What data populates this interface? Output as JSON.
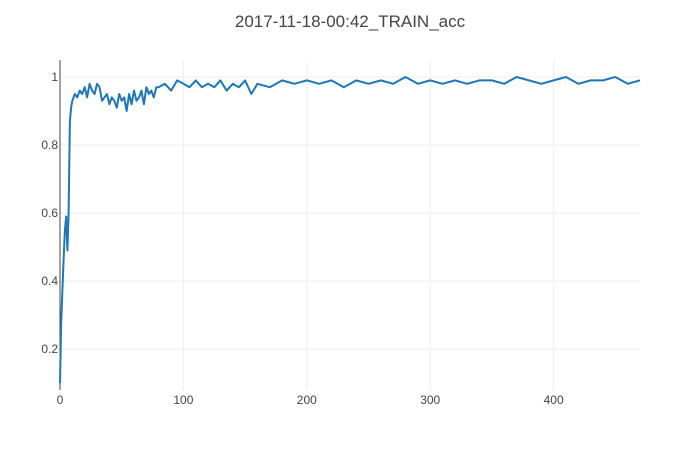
{
  "chart_data": {
    "type": "line",
    "title": "2017-11-18-00:42_TRAIN_acc",
    "xlabel": "",
    "ylabel": "",
    "xlim": [
      0,
      470
    ],
    "ylim": [
      0.08,
      1.05
    ],
    "xticks": [
      0,
      100,
      200,
      300,
      400
    ],
    "yticks": [
      0.2,
      0.4,
      0.6,
      0.8,
      1
    ],
    "ytick_labels": [
      "0.2",
      "0.4",
      "0.6",
      "0.8",
      "1"
    ],
    "xtick_labels": [
      "0",
      "100",
      "200",
      "300",
      "400"
    ],
    "grid": true,
    "series": [
      {
        "color": "#1f77b4",
        "x": [
          0,
          1,
          2,
          3,
          4,
          5,
          6,
          7,
          8,
          9,
          10,
          12,
          14,
          16,
          18,
          20,
          22,
          24,
          26,
          28,
          30,
          32,
          34,
          36,
          38,
          40,
          42,
          44,
          46,
          48,
          50,
          52,
          54,
          56,
          58,
          60,
          62,
          64,
          66,
          68,
          70,
          72,
          74,
          76,
          78,
          80,
          85,
          90,
          95,
          100,
          105,
          110,
          115,
          120,
          125,
          130,
          135,
          140,
          145,
          150,
          155,
          160,
          170,
          180,
          190,
          200,
          210,
          220,
          230,
          240,
          250,
          260,
          270,
          280,
          290,
          300,
          310,
          320,
          330,
          340,
          350,
          360,
          370,
          380,
          390,
          400,
          410,
          420,
          430,
          440,
          450,
          460,
          470
        ],
        "y": [
          0.1,
          0.28,
          0.38,
          0.47,
          0.55,
          0.59,
          0.49,
          0.6,
          0.87,
          0.91,
          0.93,
          0.95,
          0.94,
          0.96,
          0.95,
          0.97,
          0.94,
          0.98,
          0.96,
          0.95,
          0.98,
          0.97,
          0.93,
          0.94,
          0.95,
          0.92,
          0.94,
          0.93,
          0.91,
          0.95,
          0.93,
          0.94,
          0.9,
          0.95,
          0.92,
          0.96,
          0.93,
          0.94,
          0.96,
          0.92,
          0.97,
          0.95,
          0.96,
          0.94,
          0.97,
          0.97,
          0.98,
          0.96,
          0.99,
          0.98,
          0.97,
          0.99,
          0.97,
          0.98,
          0.97,
          0.99,
          0.96,
          0.98,
          0.97,
          0.99,
          0.95,
          0.98,
          0.97,
          0.99,
          0.98,
          0.99,
          0.98,
          0.99,
          0.97,
          0.99,
          0.98,
          0.99,
          0.98,
          1.0,
          0.98,
          0.99,
          0.98,
          0.99,
          0.98,
          0.99,
          0.99,
          0.98,
          1.0,
          0.99,
          0.98,
          0.99,
          1.0,
          0.98,
          0.99,
          0.99,
          1.0,
          0.98,
          0.99
        ]
      }
    ]
  }
}
